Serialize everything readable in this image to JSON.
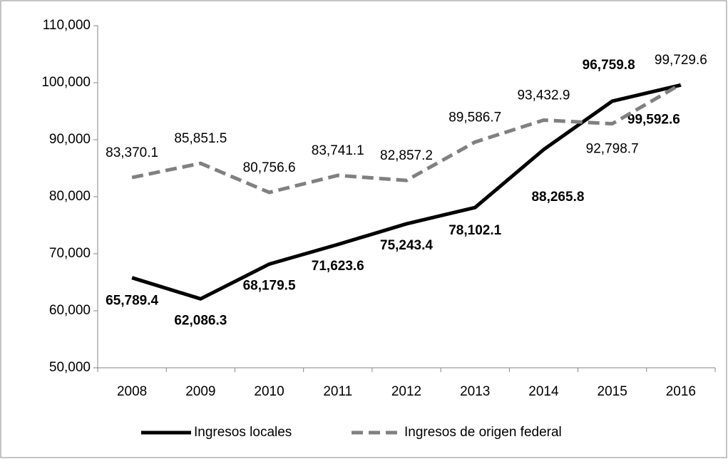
{
  "chart_data": {
    "type": "line",
    "categories": [
      "2008",
      "2009",
      "2010",
      "2011",
      "2012",
      "2013",
      "2014",
      "2015",
      "2016"
    ],
    "series": [
      {
        "name": "Ingresos locales",
        "color": "#000000",
        "dashed": false,
        "bold_labels": true,
        "values": [
          65789.4,
          62086.3,
          68179.5,
          71623.6,
          75243.4,
          78102.1,
          88265.8,
          96759.8,
          99592.6
        ],
        "value_labels": [
          "65,789.4",
          "62,086.3",
          "68,179.5",
          "71,623.6",
          "75,243.4",
          "78,102.1",
          "88,265.8",
          "96,759.8",
          "99,592.6"
        ]
      },
      {
        "name": "Ingresos de origen federal",
        "color": "#808080",
        "dashed": true,
        "bold_labels": false,
        "values": [
          83370.1,
          85851.5,
          80756.6,
          83741.1,
          82857.2,
          89586.7,
          93432.9,
          92798.7,
          99729.6
        ],
        "value_labels": [
          "83,370.1",
          "85,851.5",
          "80,756.6",
          "83,741.1",
          "82,857.2",
          "89,586.7",
          "93,432.9",
          "92,798.7",
          "99,729.6"
        ]
      }
    ],
    "ylim": [
      50000,
      110000
    ],
    "yticks": [
      {
        "value": 50000,
        "label": "50,000"
      },
      {
        "value": 60000,
        "label": "60,000"
      },
      {
        "value": 70000,
        "label": "70,000"
      },
      {
        "value": 80000,
        "label": "80,000"
      },
      {
        "value": 90000,
        "label": "90,000"
      },
      {
        "value": 100000,
        "label": "100,000"
      },
      {
        "value": 110000,
        "label": "110,000"
      }
    ],
    "grid": false,
    "legend": "bottom"
  }
}
